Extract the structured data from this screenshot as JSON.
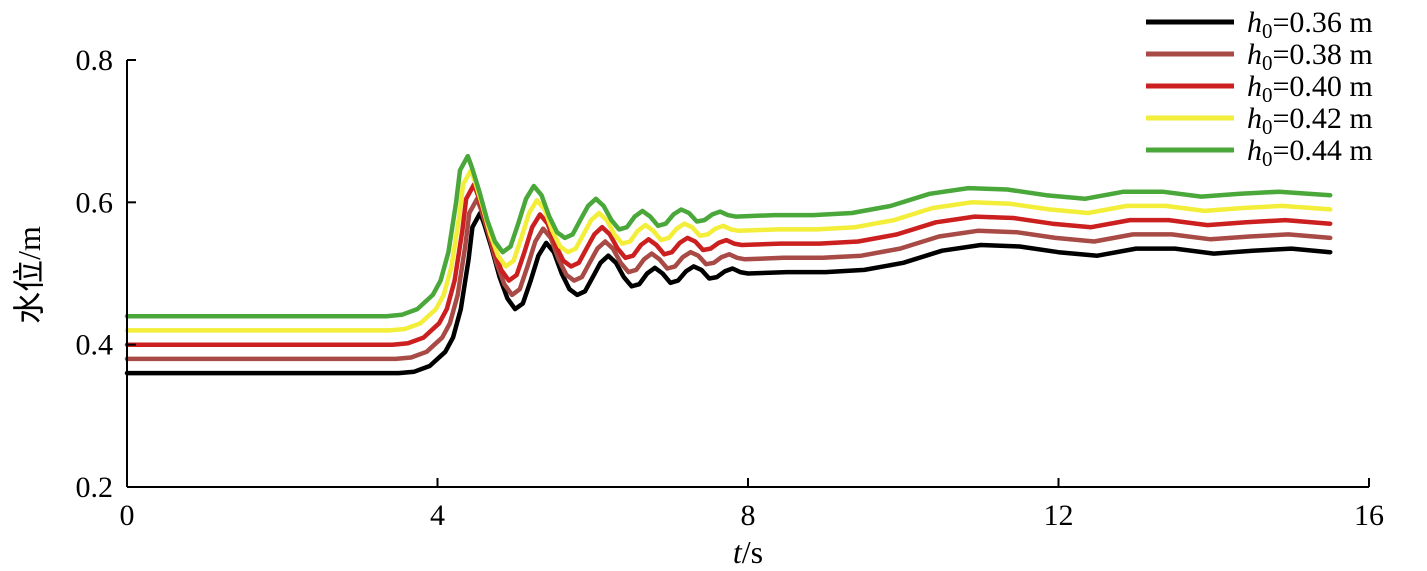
{
  "chart_data": {
    "type": "line",
    "title": "",
    "xlabel": {
      "italic": "t",
      "rest": "/s"
    },
    "ylabel": "水位/m",
    "xlim": [
      0,
      16
    ],
    "ylim": [
      0.2,
      0.8
    ],
    "xticks": [
      0,
      4,
      8,
      12,
      16
    ],
    "yticks": [
      0.2,
      0.4,
      0.6,
      0.8
    ],
    "xtick_labels": [
      "0",
      "4",
      "8",
      "12",
      "16"
    ],
    "ytick_labels": [
      "0.2",
      "0.4",
      "0.6",
      "0.8"
    ],
    "grid": false,
    "legend_position": "top-right",
    "base_curve": {
      "x": [
        0,
        3.5,
        3.7,
        3.9,
        4.1,
        4.2,
        4.3,
        4.4,
        4.45,
        4.55,
        4.6,
        4.7,
        4.8,
        4.9,
        5.0,
        5.1,
        5.2,
        5.3,
        5.4,
        5.5,
        5.6,
        5.7,
        5.8,
        5.9,
        6.0,
        6.1,
        6.2,
        6.3,
        6.4,
        6.5,
        6.6,
        6.7,
        6.8,
        6.9,
        7.0,
        7.1,
        7.2,
        7.3,
        7.4,
        7.5,
        7.6,
        7.7,
        7.8,
        7.9,
        8.0,
        8.5,
        9.0,
        9.5,
        10.0,
        10.5,
        11.0,
        11.5,
        12.0,
        12.5,
        13.0,
        13.5,
        14.0,
        14.5,
        15.0,
        15.5
      ],
      "y": [
        0.36,
        0.36,
        0.362,
        0.37,
        0.39,
        0.41,
        0.45,
        0.52,
        0.565,
        0.585,
        0.57,
        0.535,
        0.495,
        0.465,
        0.45,
        0.458,
        0.49,
        0.525,
        0.543,
        0.53,
        0.5,
        0.478,
        0.47,
        0.475,
        0.495,
        0.515,
        0.525,
        0.515,
        0.495,
        0.482,
        0.485,
        0.5,
        0.508,
        0.5,
        0.487,
        0.49,
        0.503,
        0.51,
        0.505,
        0.493,
        0.495,
        0.503,
        0.507,
        0.502,
        0.5,
        0.502,
        0.502,
        0.505,
        0.515,
        0.532,
        0.54,
        0.538,
        0.53,
        0.525,
        0.535,
        0.535,
        0.528,
        0.532,
        0.535,
        0.53
      ]
    },
    "series": [
      {
        "name": "h0=0.36 m",
        "label_main": "h",
        "label_sub": "0",
        "label_value": "=0.36 m",
        "color": "#000000",
        "offset": 0.0,
        "x_shift": 0.0
      },
      {
        "name": "h0=0.38 m",
        "label_main": "h",
        "label_sub": "0",
        "label_value": "=0.38 m",
        "color": "#a84a45",
        "offset": 0.02,
        "x_shift": -0.04
      },
      {
        "name": "h0=0.40 m",
        "label_main": "h",
        "label_sub": "0",
        "label_value": "=0.40 m",
        "color": "#cc1f1f",
        "offset": 0.04,
        "x_shift": -0.08
      },
      {
        "name": "h0=0.42 m",
        "label_main": "h",
        "label_sub": "0",
        "label_value": "=0.42 m",
        "color": "#f2ee3a",
        "offset": 0.06,
        "x_shift": -0.12
      },
      {
        "name": "h0=0.44 m",
        "label_main": "h",
        "label_sub": "0",
        "label_value": "=0.44 m",
        "color": "#4aa83a",
        "offset": 0.08,
        "x_shift": -0.16
      }
    ]
  }
}
